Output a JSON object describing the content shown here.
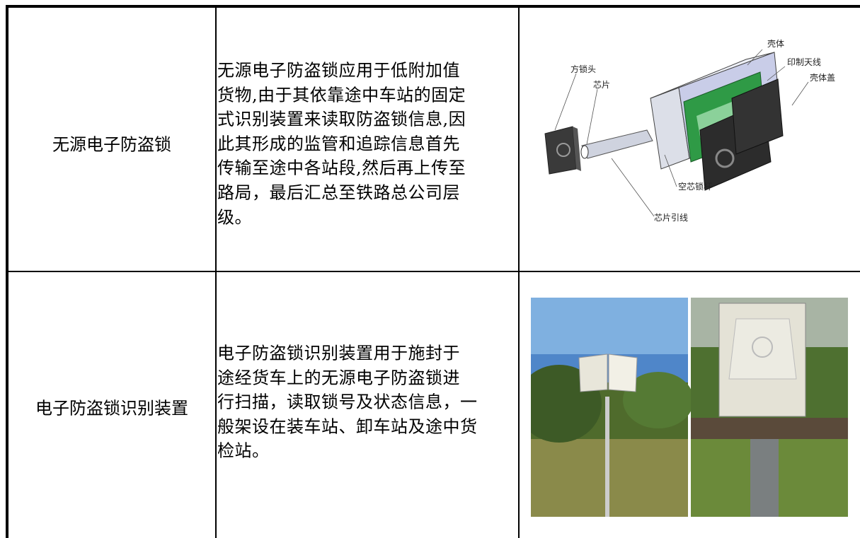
{
  "table": {
    "rows": [
      {
        "name": "无源电子防盗锁",
        "description": [
          "无源电子防盗锁应用于低附加值",
          "货物,由于其依靠途中车站的固定",
          "式识别装置来读取防盗锁信息,因",
          "此其形成的监管和追踪信息首先",
          "传输至途中各站段,然后再上传至",
          "路局，最后汇总至铁路总公司层",
          "级。"
        ],
        "figure_labels": [
          "壳体",
          "印制天线",
          "壳体盖",
          "方锁头",
          "芯片",
          "空芯锁杆",
          "芯片引线"
        ]
      },
      {
        "name": "电子防盗锁识别装置",
        "description": [
          "电子防盗锁识别装置用于施封于",
          "途经货车上的无源电子防盗锁进",
          "行扫描，读取锁号及状态信息，一",
          "般架设在装车站、卸车站及途中货",
          "检站。"
        ]
      }
    ]
  }
}
